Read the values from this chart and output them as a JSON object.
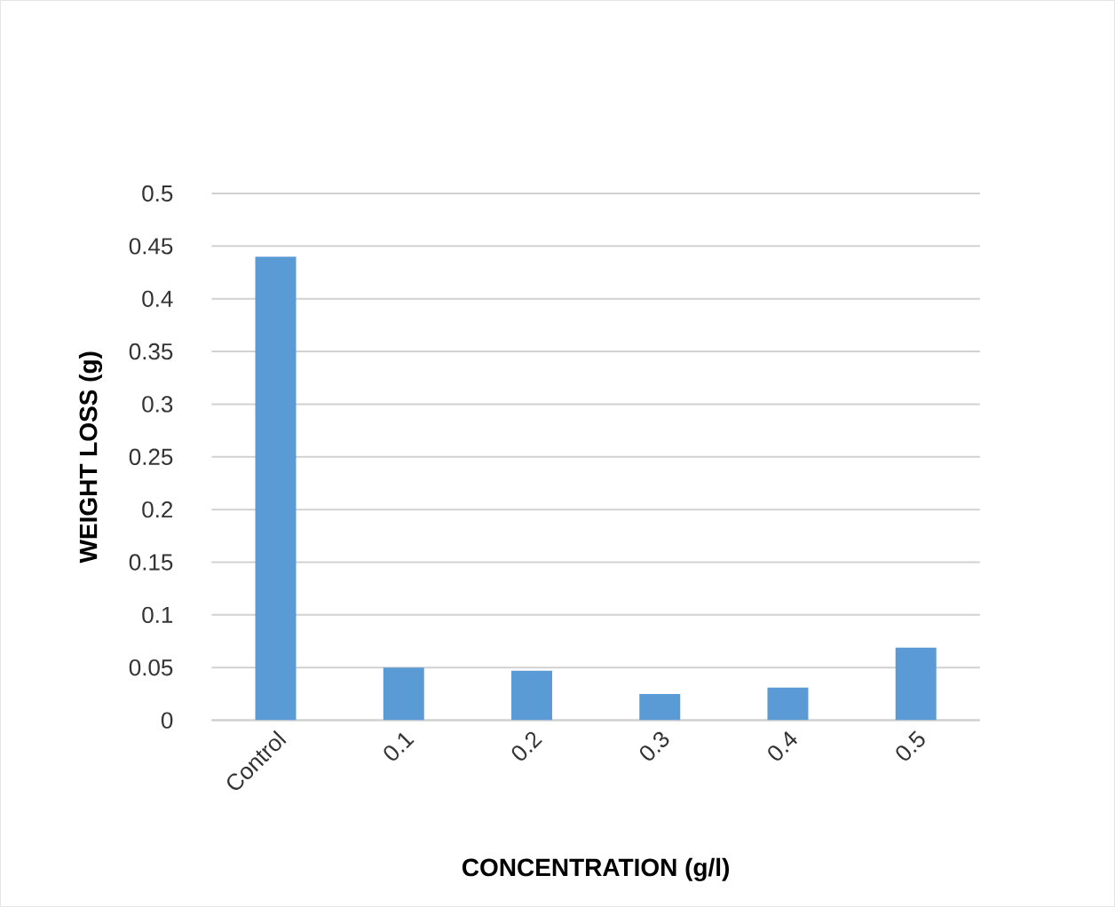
{
  "chart_data": {
    "type": "bar",
    "xlabel": "CONCENTRATION (g/l)",
    "ylabel": "WEIGHT LOSS (g)",
    "categories": [
      "Control",
      "0.1",
      "0.2",
      "0.3",
      "0.4",
      "0.5"
    ],
    "values": [
      0.44,
      0.05,
      0.047,
      0.025,
      0.031,
      0.069
    ],
    "color": "#5b9bd5",
    "ylim": [
      0,
      0.5
    ],
    "yticks": [
      0,
      0.05,
      0.1,
      0.15,
      0.2,
      0.25,
      0.3,
      0.35,
      0.4,
      0.45,
      0.5
    ],
    "grid": "y"
  }
}
